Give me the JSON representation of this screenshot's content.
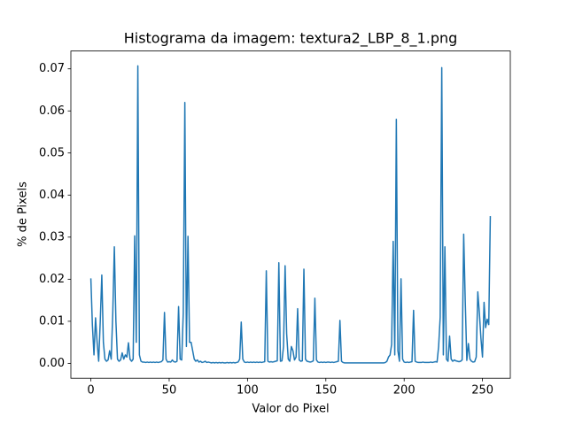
{
  "chart_data": {
    "type": "line",
    "title": "Histograma da imagem: textura2_LBP_8_1.png",
    "xlabel": "Valor do Pixel",
    "ylabel": "% de Pixels",
    "color": "#1f77b4",
    "x": [
      0,
      1,
      2,
      3,
      4,
      5,
      6,
      7,
      8,
      9,
      10,
      11,
      12,
      13,
      14,
      15,
      16,
      17,
      18,
      19,
      20,
      21,
      22,
      23,
      24,
      25,
      26,
      27,
      28,
      29,
      30,
      31,
      32,
      33,
      34,
      35,
      36,
      37,
      38,
      39,
      40,
      41,
      42,
      43,
      44,
      45,
      46,
      47,
      48,
      49,
      50,
      51,
      52,
      53,
      54,
      55,
      56,
      57,
      58,
      59,
      60,
      61,
      62,
      63,
      64,
      65,
      66,
      67,
      68,
      69,
      70,
      71,
      72,
      73,
      74,
      75,
      76,
      77,
      78,
      79,
      80,
      81,
      82,
      83,
      84,
      85,
      86,
      87,
      88,
      89,
      90,
      91,
      92,
      93,
      94,
      95,
      96,
      97,
      98,
      99,
      100,
      101,
      102,
      103,
      104,
      105,
      106,
      107,
      108,
      109,
      110,
      111,
      112,
      113,
      114,
      115,
      116,
      117,
      118,
      119,
      120,
      121,
      122,
      123,
      124,
      125,
      126,
      127,
      128,
      129,
      130,
      131,
      132,
      133,
      134,
      135,
      136,
      137,
      138,
      139,
      140,
      141,
      142,
      143,
      144,
      145,
      146,
      147,
      148,
      149,
      150,
      151,
      152,
      153,
      154,
      155,
      156,
      157,
      158,
      159,
      160,
      161,
      162,
      163,
      164,
      165,
      166,
      167,
      168,
      169,
      170,
      171,
      172,
      173,
      174,
      175,
      176,
      177,
      178,
      179,
      180,
      181,
      182,
      183,
      184,
      185,
      186,
      187,
      188,
      189,
      190,
      191,
      192,
      193,
      194,
      195,
      196,
      197,
      198,
      199,
      200,
      201,
      202,
      203,
      204,
      205,
      206,
      207,
      208,
      209,
      210,
      211,
      212,
      213,
      214,
      215,
      216,
      217,
      218,
      219,
      220,
      221,
      222,
      223,
      224,
      225,
      226,
      227,
      228,
      229,
      230,
      231,
      232,
      233,
      234,
      235,
      236,
      237,
      238,
      239,
      240,
      241,
      242,
      243,
      244,
      245,
      246,
      247,
      248,
      249,
      250,
      251,
      252,
      253,
      254,
      255
    ],
    "values": [
      0.0202,
      0.009,
      0.002,
      0.0108,
      0.005,
      0.0005,
      0.01,
      0.021,
      0.005,
      0.001,
      0.0005,
      0.0008,
      0.003,
      0.001,
      0.012,
      0.0277,
      0.01,
      0.001,
      0.0005,
      0.0008,
      0.0025,
      0.001,
      0.002,
      0.0015,
      0.0049,
      0.001,
      0.0005,
      0.001,
      0.0303,
      0.005,
      0.0707,
      0.002,
      0.0005,
      0.0003,
      0.0003,
      0.0002,
      0.0003,
      0.0002,
      0.0003,
      0.0002,
      0.0003,
      0.0002,
      0.0003,
      0.0002,
      0.0003,
      0.0004,
      0.0008,
      0.0121,
      0.001,
      0.0003,
      0.0004,
      0.0003,
      0.0008,
      0.0004,
      0.0003,
      0.0005,
      0.0135,
      0.001,
      0.0008,
      0.012,
      0.062,
      0.004,
      0.0302,
      0.005,
      0.005,
      0.003,
      0.001,
      0.0005,
      0.0008,
      0.0003,
      0.0005,
      0.0002,
      0.0003,
      0.0005,
      0.0002,
      0.0003,
      0.0002,
      0.0001,
      0.0002,
      0.0001,
      0.0002,
      0.0001,
      0.0002,
      0.0001,
      0.0002,
      0.0001,
      0.0001,
      0.0002,
      0.0001,
      0.0002,
      0.0001,
      0.0002,
      0.0001,
      0.0002,
      0.0003,
      0.001,
      0.0098,
      0.001,
      0.0003,
      0.0002,
      0.0003,
      0.0002,
      0.0003,
      0.0002,
      0.0003,
      0.0002,
      0.0003,
      0.0002,
      0.0003,
      0.0002,
      0.0003,
      0.0004,
      0.022,
      0.0005,
      0.0003,
      0.0004,
      0.0003,
      0.0004,
      0.0005,
      0.0006,
      0.0239,
      0.0005,
      0.0006,
      0.004,
      0.0232,
      0.007,
      0.001,
      0.0005,
      0.004,
      0.003,
      0.0008,
      0.0015,
      0.013,
      0.0008,
      0.0005,
      0.0006,
      0.0224,
      0.001,
      0.0005,
      0.0004,
      0.0003,
      0.0004,
      0.0006,
      0.0155,
      0.0008,
      0.0003,
      0.0002,
      0.0003,
      0.0002,
      0.0003,
      0.0002,
      0.0003,
      0.0003,
      0.0002,
      0.0003,
      0.0002,
      0.0003,
      0.0004,
      0.0005,
      0.0102,
      0.0005,
      0.0002,
      0.0001,
      0.0001,
      0.0001,
      0.0001,
      0.0001,
      0.0001,
      0.0001,
      0.0001,
      0.0001,
      0.0001,
      0.0001,
      0.0001,
      0.0001,
      0.0001,
      0.0001,
      0.0001,
      0.0001,
      0.0001,
      0.0001,
      0.0001,
      0.0001,
      0.0001,
      0.0001,
      0.0001,
      0.0001,
      0.0001,
      0.0002,
      0.0005,
      0.0015,
      0.002,
      0.0045,
      0.029,
      0.002,
      0.058,
      0.003,
      0.0005,
      0.0201,
      0.001,
      0.0003,
      0.0002,
      0.0003,
      0.0002,
      0.0003,
      0.0004,
      0.0126,
      0.0005,
      0.0003,
      0.0002,
      0.0002,
      0.0002,
      0.0003,
      0.0002,
      0.0002,
      0.0002,
      0.0002,
      0.0003,
      0.0002,
      0.0003,
      0.0004,
      0.0003,
      0.004,
      0.011,
      0.0703,
      0.002,
      0.0277,
      0.001,
      0.0005,
      0.0065,
      0.001,
      0.0005,
      0.0008,
      0.0006,
      0.0005,
      0.0004,
      0.0005,
      0.0008,
      0.0307,
      0.0147,
      0.0007,
      0.0047,
      0.001,
      0.0005,
      0.0003,
      0.0004,
      0.0015,
      0.017,
      0.012,
      0.006,
      0.0015,
      0.0145,
      0.0085,
      0.0105,
      0.0092,
      0.035
    ],
    "xlim": [
      -12.75,
      267.75
    ],
    "xticks": [
      0,
      50,
      100,
      150,
      200,
      250
    ],
    "ylim": [
      -0.00354,
      0.07424
    ],
    "yticks": [
      {
        "value": 0,
        "label": "0.00"
      },
      {
        "value": 0.01,
        "label": "0.01"
      },
      {
        "value": 0.02,
        "label": "0.02"
      },
      {
        "value": 0.03,
        "label": "0.03"
      },
      {
        "value": 0.04,
        "label": "0.04"
      },
      {
        "value": 0.05,
        "label": "0.05"
      },
      {
        "value": 0.06,
        "label": "0.06"
      },
      {
        "value": 0.07,
        "label": "0.07"
      }
    ]
  }
}
